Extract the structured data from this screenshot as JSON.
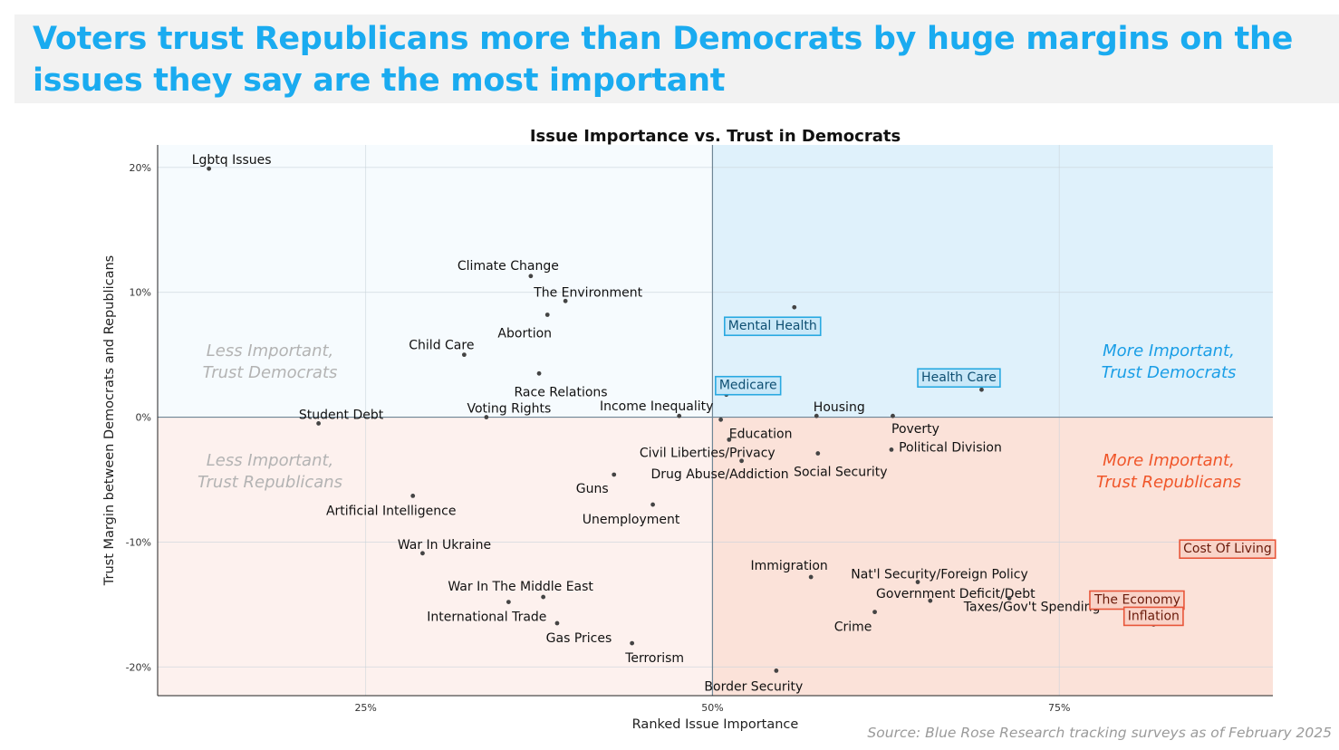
{
  "headline": "Voters trust Republicans more than Democrats by huge margins on the issues they say are the most important",
  "source": "Source: Blue Rose Research tracking surveys as of February 2025",
  "colors": {
    "headline": "#1aabf0",
    "dem_quad": "#dff1fb",
    "rep_quad": "#fbe2d9",
    "dem_text": "#1a9ee6",
    "rep_text": "#f0562a",
    "highlight_dem": "#29a9e1",
    "highlight_rep": "#e8563a"
  },
  "chart_data": {
    "type": "scatter",
    "title": "Issue Importance vs. Trust in Democrats",
    "xlabel": "Ranked Issue Importance",
    "ylabel": "Trust Margin between Democrats and Republicans",
    "xlim": [
      0.1,
      0.904
    ],
    "ylim": [
      -22.3,
      21.8
    ],
    "x_ticks": [
      0.25,
      0.5,
      0.75
    ],
    "x_tick_labels": [
      "25%",
      "50%",
      "75%"
    ],
    "y_ticks": [
      20,
      10,
      0,
      -10,
      -20
    ],
    "y_tick_labels": [
      "20%",
      "10%",
      "0%",
      "-10%",
      "-20%"
    ],
    "grid": true,
    "quadrant_labels": [
      {
        "text": "Less Important,\nTrust Democrats",
        "quadrant": "top-left"
      },
      {
        "text": "More Important,\nTrust Democrats",
        "quadrant": "top-right"
      },
      {
        "text": "Less Important,\nTrust Republicans",
        "quadrant": "bottom-left"
      },
      {
        "text": "More Important,\nTrust Republicans",
        "quadrant": "bottom-right"
      }
    ],
    "points": [
      {
        "label": "Lgbtq Issues",
        "x": 0.137,
        "y": 19.9,
        "highlight": ""
      },
      {
        "label": "Climate Change",
        "x": 0.369,
        "y": 11.3,
        "highlight": ""
      },
      {
        "label": "The Environment",
        "x": 0.394,
        "y": 9.3,
        "highlight": ""
      },
      {
        "label": "Abortion",
        "x": 0.381,
        "y": 8.2,
        "highlight": ""
      },
      {
        "label": "Child Care",
        "x": 0.321,
        "y": 5.0,
        "highlight": ""
      },
      {
        "label": "Race Relations",
        "x": 0.375,
        "y": 3.5,
        "highlight": ""
      },
      {
        "label": "Student Debt",
        "x": 0.216,
        "y": -0.5,
        "highlight": ""
      },
      {
        "label": "Voting Rights",
        "x": 0.337,
        "y": 0.0,
        "highlight": ""
      },
      {
        "label": "Income Inequality",
        "x": 0.476,
        "y": 0.1,
        "highlight": ""
      },
      {
        "label": "Mental Health",
        "x": 0.559,
        "y": 8.8,
        "highlight": "dem"
      },
      {
        "label": "Medicare",
        "x": 0.51,
        "y": 1.8,
        "highlight": "dem"
      },
      {
        "label": "Housing",
        "x": 0.575,
        "y": 0.1,
        "highlight": ""
      },
      {
        "label": "Health Care",
        "x": 0.694,
        "y": 2.2,
        "highlight": "dem"
      },
      {
        "label": "Poverty",
        "x": 0.63,
        "y": 0.1,
        "highlight": ""
      },
      {
        "label": "Education",
        "x": 0.506,
        "y": -0.2,
        "highlight": ""
      },
      {
        "label": "Political Division",
        "x": 0.629,
        "y": -2.6,
        "highlight": ""
      },
      {
        "label": "Civil Liberties/Privacy",
        "x": 0.512,
        "y": -1.8,
        "highlight": ""
      },
      {
        "label": "Social Security",
        "x": 0.576,
        "y": -2.9,
        "highlight": ""
      },
      {
        "label": "Drug Abuse/Addiction",
        "x": 0.521,
        "y": -3.5,
        "highlight": ""
      },
      {
        "label": "Guns",
        "x": 0.429,
        "y": -4.6,
        "highlight": ""
      },
      {
        "label": "Artificial Intelligence",
        "x": 0.284,
        "y": -6.3,
        "highlight": ""
      },
      {
        "label": "Unemployment",
        "x": 0.457,
        "y": -7.0,
        "highlight": ""
      },
      {
        "label": "War In Ukraine",
        "x": 0.291,
        "y": -10.9,
        "highlight": ""
      },
      {
        "label": "Cost Of Living",
        "x": 0.87,
        "y": -11.0,
        "highlight": "rep"
      },
      {
        "label": "Immigration",
        "x": 0.571,
        "y": -12.8,
        "highlight": ""
      },
      {
        "label": "Nat'l Security/Foreign Policy",
        "x": 0.648,
        "y": -13.2,
        "highlight": ""
      },
      {
        "label": "War In The Middle East",
        "x": 0.378,
        "y": -14.4,
        "highlight": ""
      },
      {
        "label": "International Trade",
        "x": 0.353,
        "y": -14.8,
        "highlight": ""
      },
      {
        "label": "Government Deficit/Debt",
        "x": 0.657,
        "y": -14.7,
        "highlight": ""
      },
      {
        "label": "Taxes/Gov't Spending",
        "x": 0.714,
        "y": -14.5,
        "highlight": ""
      },
      {
        "label": "The Economy",
        "x": 0.822,
        "y": -15.3,
        "highlight": "rep"
      },
      {
        "label": "Crime",
        "x": 0.617,
        "y": -15.6,
        "highlight": ""
      },
      {
        "label": "Gas Prices",
        "x": 0.388,
        "y": -16.5,
        "highlight": ""
      },
      {
        "label": "Inflation",
        "x": 0.818,
        "y": -16.6,
        "highlight": "rep"
      },
      {
        "label": "Terrorism",
        "x": 0.442,
        "y": -18.1,
        "highlight": ""
      },
      {
        "label": "Border Security",
        "x": 0.546,
        "y": -20.3,
        "highlight": ""
      }
    ]
  }
}
